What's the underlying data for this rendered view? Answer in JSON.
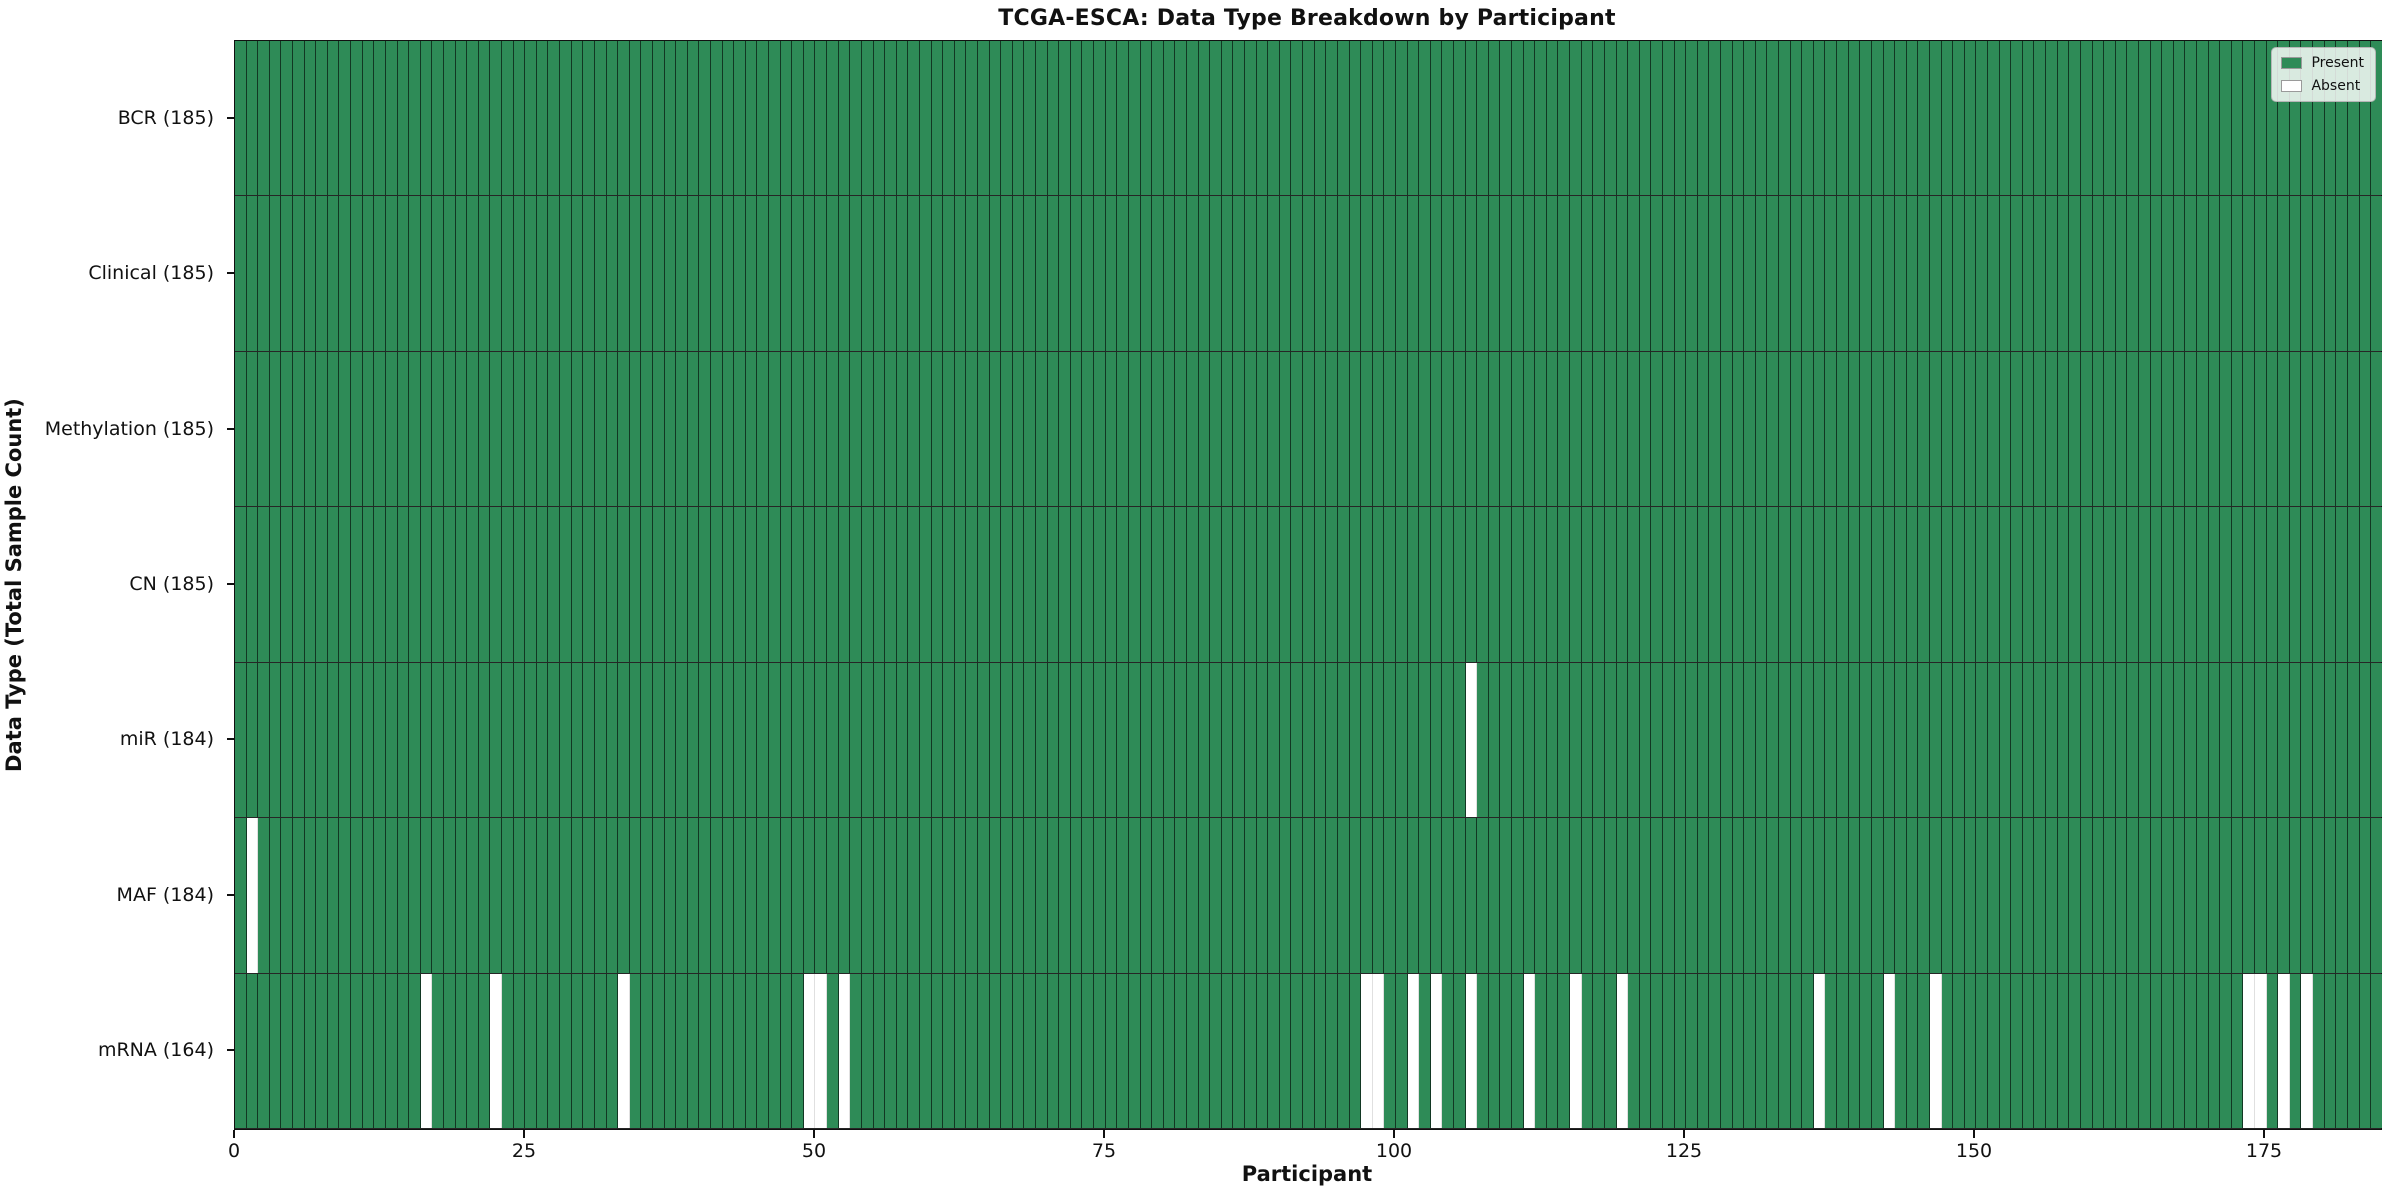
{
  "title": "TCGA-ESCA: Data Type Breakdown by Participant",
  "chart_data": {
    "type": "heatmap",
    "title": "TCGA-ESCA: Data Type Breakdown by Participant",
    "xlabel": "Participant",
    "ylabel": "Data Type (Total Sample Count)",
    "n_participants": 185,
    "x_ticks": [
      0,
      25,
      50,
      75,
      100,
      125,
      150,
      175
    ],
    "x_range": [
      0,
      185
    ],
    "grid": false,
    "legend_position": "upper right",
    "rows": [
      {
        "name": "BCR",
        "label": "BCR (185)",
        "count": 185,
        "absent_participants": []
      },
      {
        "name": "Clinical",
        "label": "Clinical (185)",
        "count": 185,
        "absent_participants": []
      },
      {
        "name": "Methylation",
        "label": "Methylation (185)",
        "count": 185,
        "absent_participants": []
      },
      {
        "name": "CN",
        "label": "CN (185)",
        "count": 185,
        "absent_participants": []
      },
      {
        "name": "miR",
        "label": "miR (184)",
        "count": 184,
        "absent_participants": [
          106
        ]
      },
      {
        "name": "MAF",
        "label": "MAF (184)",
        "count": 184,
        "absent_participants": [
          1
        ]
      },
      {
        "name": "mRNA",
        "label": "mRNA (164)",
        "count": 164,
        "absent_participants": [
          16,
          22,
          33,
          49,
          50,
          52,
          97,
          98,
          101,
          103,
          106,
          111,
          115,
          119,
          136,
          142,
          146,
          173,
          174,
          176,
          178
        ]
      }
    ],
    "legend": [
      {
        "label": "Present",
        "color": "#2e8b57"
      },
      {
        "label": "Absent",
        "color": "#ffffff"
      }
    ],
    "colors": {
      "present": "#2e8b57",
      "absent": "#ffffff"
    }
  }
}
